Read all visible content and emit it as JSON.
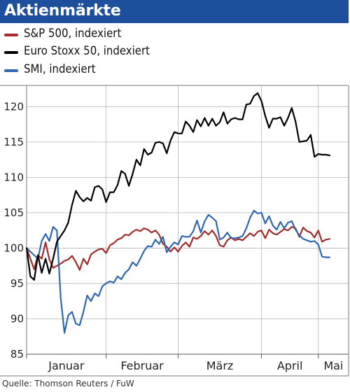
{
  "header": {
    "title": "Aktienmärkte"
  },
  "source": "Quelle: Thomson Reuters / FuW",
  "chart_data": {
    "type": "line",
    "title": "Aktienmärkte",
    "xlabel": "",
    "ylabel": "",
    "ylim": [
      85,
      123
    ],
    "yticks": [
      85,
      90,
      95,
      100,
      105,
      110,
      115,
      120
    ],
    "ytick_labels": [
      "85",
      "90",
      "95",
      "100",
      "105",
      "110",
      "115",
      "120"
    ],
    "xlim": [
      0,
      85
    ],
    "months": [
      "Januar",
      "Februar",
      "März",
      "April",
      "Mai"
    ],
    "month_boundaries": [
      0,
      21,
      40,
      62,
      77
    ],
    "grid": true,
    "legend_position": "top-left",
    "series": [
      {
        "name": "S&P 500, indexiert",
        "color": "#a32b2b",
        "x": [
          0,
          1,
          2,
          3,
          4,
          5,
          6,
          7,
          8,
          9,
          10,
          11,
          12,
          13,
          14,
          15,
          16,
          17,
          18,
          19,
          20,
          21,
          22,
          23,
          24,
          25,
          26,
          27,
          28,
          29,
          30,
          31,
          32,
          33,
          34,
          35,
          36,
          37,
          38,
          39,
          40,
          41,
          42,
          43,
          44,
          45,
          46,
          47,
          48,
          49,
          50,
          51,
          52,
          53,
          54,
          55,
          56,
          57,
          58,
          59,
          60,
          61,
          62,
          63,
          64,
          65,
          66,
          67,
          68,
          69,
          70,
          71,
          72,
          73,
          74,
          75,
          76,
          77,
          78,
          79,
          80
        ],
        "values": [
          100,
          98.5,
          97,
          99,
          98.5,
          100.8,
          98.4,
          97.2,
          97.5,
          97.8,
          98.2,
          98.4,
          98.9,
          98,
          96.9,
          98.5,
          97.7,
          99.1,
          99.5,
          99.8,
          99.9,
          99.3,
          100.4,
          100.7,
          101.2,
          101.4,
          101.9,
          101.8,
          102.3,
          102.6,
          102.4,
          102.8,
          102.6,
          102.2,
          102.5,
          101.9,
          100.6,
          100.2,
          99.5,
          100.1,
          99.5,
          100.3,
          100.8,
          100.2,
          101.5,
          101.3,
          101.7,
          102.4,
          101.9,
          102.5,
          101.7,
          100.4,
          100.2,
          101.1,
          101.5,
          101.1,
          101.3,
          101.1,
          101.6,
          102.1,
          101.7,
          102.3,
          102.5,
          101.4,
          102.6,
          102.1,
          101.9,
          102.3,
          102.7,
          102.5,
          103,
          102.8,
          101.6,
          102.9,
          102.4,
          102.2,
          101.5,
          102.5,
          100.9,
          101.2,
          101.3
        ]
      },
      {
        "name": "Euro Stoxx 50, indexiert",
        "color": "#000000",
        "x": [
          0,
          1,
          2,
          3,
          4,
          5,
          6,
          7,
          8,
          9,
          10,
          11,
          12,
          13,
          14,
          15,
          16,
          17,
          18,
          19,
          20,
          21,
          22,
          23,
          24,
          25,
          26,
          27,
          28,
          29,
          30,
          31,
          32,
          33,
          34,
          35,
          36,
          37,
          38,
          39,
          40,
          41,
          42,
          43,
          44,
          45,
          46,
          47,
          48,
          49,
          50,
          51,
          52,
          53,
          54,
          55,
          56,
          57,
          58,
          59,
          60,
          61,
          62,
          63,
          64,
          65,
          66,
          67,
          68,
          69,
          70,
          71,
          72,
          73,
          74,
          75,
          76,
          77,
          78,
          79,
          80
        ],
        "values": [
          100,
          96,
          95.5,
          99,
          96.5,
          98.5,
          96.4,
          98.5,
          100.9,
          101.7,
          102.5,
          103.6,
          106.1,
          108.1,
          107.2,
          106.6,
          107.1,
          106.7,
          108.6,
          108.8,
          108.3,
          106.5,
          107.9,
          107.9,
          108.9,
          110.9,
          110.5,
          108.8,
          110.5,
          112.5,
          111.7,
          114,
          113.2,
          113.5,
          114.9,
          115,
          114.8,
          113.4,
          115.2,
          116.4,
          116.2,
          116.2,
          117.9,
          117.3,
          116.4,
          118.1,
          117.2,
          118.4,
          117.3,
          118.3,
          117.3,
          117.8,
          119.2,
          117.6,
          118.2,
          118.4,
          118.2,
          118.2,
          120.3,
          120.4,
          121.5,
          121.9,
          120.8,
          118.7,
          117,
          118.3,
          118.3,
          118.5,
          117.3,
          118.4,
          119.8,
          117.9,
          115,
          115.1,
          115.2,
          116,
          112.9,
          113.3,
          113.2,
          113.2,
          113.1
        ]
      },
      {
        "name": "SMI, indexiert",
        "color": "#2f67b0",
        "x": [
          0,
          1,
          2,
          3,
          4,
          5,
          6,
          7,
          8,
          9,
          10,
          11,
          12,
          13,
          14,
          15,
          16,
          17,
          18,
          19,
          20,
          21,
          22,
          23,
          24,
          25,
          26,
          27,
          28,
          29,
          30,
          31,
          32,
          33,
          34,
          35,
          36,
          37,
          38,
          39,
          40,
          41,
          42,
          43,
          44,
          45,
          46,
          47,
          48,
          49,
          50,
          51,
          52,
          53,
          54,
          55,
          56,
          57,
          58,
          59,
          60,
          61,
          62,
          63,
          64,
          65,
          66,
          67,
          68,
          69,
          70,
          71,
          72,
          73,
          74,
          75,
          76,
          77,
          78,
          79,
          80
        ],
        "values": [
          100,
          99.5,
          99,
          98.5,
          101,
          102,
          101,
          103,
          102.5,
          93,
          88,
          90.5,
          91,
          89.3,
          89.1,
          91,
          93.3,
          92.5,
          93.6,
          93.2,
          94.6,
          95,
          95.3,
          95.1,
          96,
          95.6,
          96.5,
          97,
          98,
          97.5,
          98.5,
          99.6,
          100.3,
          100.2,
          101.2,
          100.6,
          101.6,
          99.4,
          100.2,
          100.8,
          100.5,
          101.7,
          101.6,
          101.6,
          102.4,
          103.9,
          102.2,
          103.8,
          104.7,
          104.3,
          103.8,
          101.2,
          101.5,
          102.2,
          101.4,
          101.4,
          101.5,
          101.7,
          102.8,
          104.3,
          105.3,
          104.9,
          105,
          103.5,
          104.5,
          103.2,
          102.6,
          103.7,
          102.8,
          103.6,
          103.8,
          102.6,
          101.8,
          101.3,
          101.1,
          100.9,
          101,
          100.5,
          98.8,
          98.7,
          98.7
        ]
      }
    ]
  }
}
